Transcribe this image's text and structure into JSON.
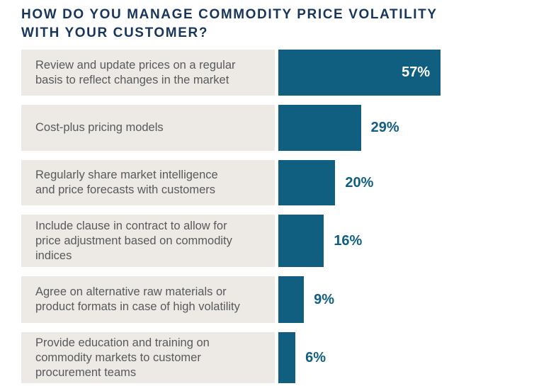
{
  "header": {
    "title": "HOW DO YOU MANAGE COMMODITY PRICE VOLATILITY WITH YOUR CUSTOMER?",
    "title_lines": [
      "HOW DO YOU MANAGE COMMODITY PRICE VOLATILITY",
      "WITH YOUR CUSTOMER?"
    ]
  },
  "colors": {
    "title_text": "#17365a",
    "bar": "#115f80",
    "value_label_inside": "#ffffff",
    "value_label_outside": "#115f80",
    "label_cell_background": "#edeae6",
    "label_text": "#58595b"
  },
  "chart_data": {
    "type": "bar",
    "orientation": "horizontal",
    "title": "HOW DO YOU MANAGE COMMODITY PRICE VOLATILITY WITH YOUR CUSTOMER?",
    "categories": [
      "Review and update prices on a regular\nbasis to reflect changes in the market",
      "Cost-plus pricing models",
      "Regularly share market intelligence\nand price forecasts with customers",
      "Include clause in contract to allow for\nprice adjustment based on commodity\nindices",
      "Agree on alternative raw materials or\nproduct formats in case of high volatility",
      "Provide education and training on\ncommodity markets to customer\nprocurement teams"
    ],
    "values": [
      57,
      29,
      20,
      16,
      9,
      6
    ],
    "value_labels": [
      "57%",
      "29%",
      "20%",
      "16%",
      "9%",
      "6%"
    ],
    "value_label_placement": [
      "inside",
      "outside",
      "outside",
      "outside",
      "outside",
      "outside"
    ],
    "unit": "%",
    "axis_shown": false,
    "grid": false,
    "legend": false,
    "xlim": [
      0,
      60
    ]
  }
}
